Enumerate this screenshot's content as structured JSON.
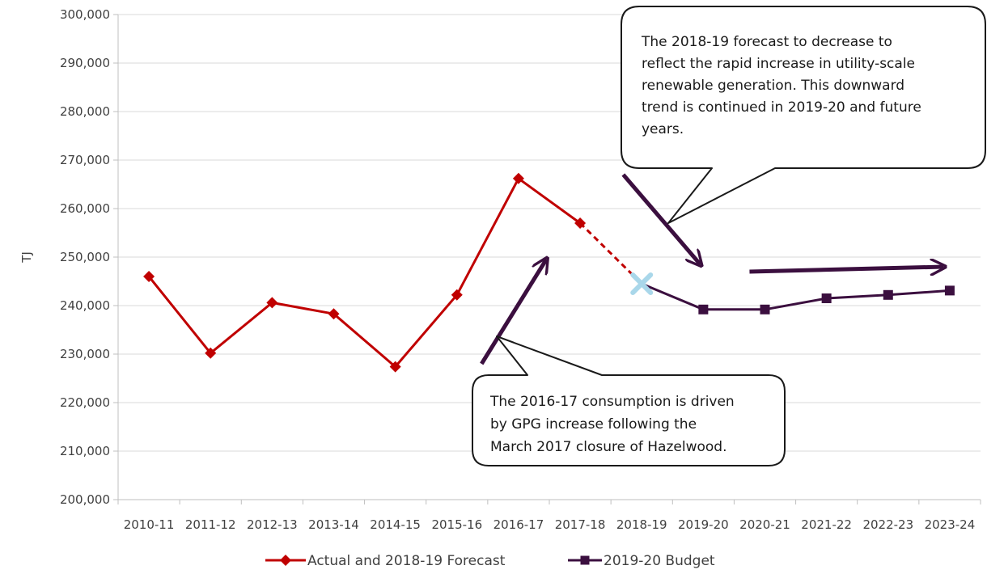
{
  "chart_data": {
    "type": "line",
    "categories": [
      "2010-11",
      "2011-12",
      "2012-13",
      "2013-14",
      "2014-15",
      "2015-16",
      "2016-17",
      "2017-18",
      "2018-19",
      "2019-20",
      "2020-21",
      "2021-22",
      "2022-23",
      "2023-24"
    ],
    "ylabel": "TJ",
    "xlabel": "",
    "ylim": [
      200000,
      300000
    ],
    "ytick_step": 10000,
    "ytick_labels": [
      "200,000",
      "210,000",
      "220,000",
      "230,000",
      "240,000",
      "250,000",
      "260,000",
      "270,000",
      "280,000",
      "290,000",
      "300,000"
    ],
    "grid": true,
    "legend_position": "bottom",
    "series": [
      {
        "name": "Actual and 2018-19 Forecast",
        "color": "#c00000",
        "marker": "diamond",
        "values": [
          246000,
          230200,
          240600,
          238300,
          227400,
          242200,
          266200,
          257000,
          null,
          null,
          null,
          null,
          null,
          null
        ],
        "dashed_segment_to": {
          "category": "2018-19",
          "value": 244500
        }
      },
      {
        "name": "2019-20 Budget",
        "color": "#3b0f3f",
        "marker": "square",
        "values": [
          null,
          null,
          null,
          null,
          null,
          null,
          null,
          null,
          244500,
          239200,
          239200,
          241500,
          242200,
          243100
        ]
      }
    ],
    "special_markers": [
      {
        "category": "2018-19",
        "value": 244500,
        "shape": "star",
        "color": "#a9d7ea"
      }
    ],
    "annotations": [
      {
        "id": "top",
        "text_lines": [
          "The 2018-19 forecast to decrease to",
          "reflect the rapid increase in utility-scale",
          "renewable generation. This downward",
          "trend is continued in 2019-20 and future",
          "years."
        ]
      },
      {
        "id": "bottom",
        "text_lines": [
          "The 2016-17 consumption is driven",
          "by GPG increase following the",
          "March 2017 closure of Hazelwood."
        ]
      }
    ],
    "trend_arrows": [
      {
        "from": {
          "x": 5.4,
          "y": 228000
        },
        "to": {
          "x": 6.45,
          "y": 249500
        }
      },
      {
        "from": {
          "x": 7.7,
          "y": 267000
        },
        "to": {
          "x": 8.95,
          "y": 248500
        }
      },
      {
        "from": {
          "x": 9.75,
          "y": 247000
        },
        "to": {
          "x": 12.9,
          "y": 248000
        }
      }
    ],
    "colors": {
      "axis": "#bfbfbf",
      "grid": "#d9d9d9",
      "arrow": "#3b0f3f",
      "callout_border": "#1a1a1a"
    }
  }
}
